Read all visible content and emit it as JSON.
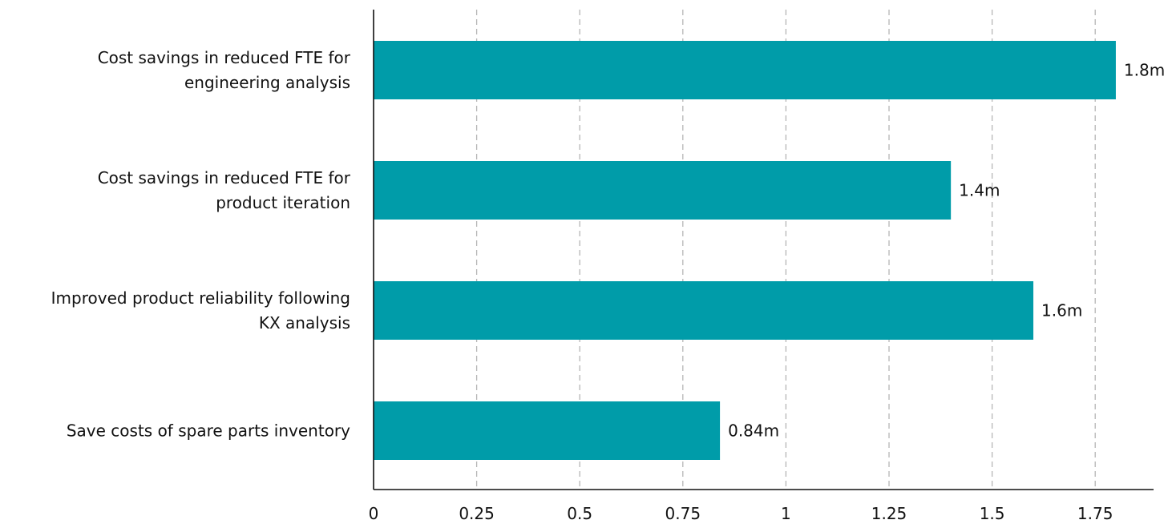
{
  "chart_data": {
    "type": "bar",
    "orientation": "horizontal",
    "categories": [
      [
        "Cost savings in reduced FTE for",
        "engineering analysis"
      ],
      [
        "Cost savings in reduced FTE for",
        "product iteration"
      ],
      [
        "Improved product reliability following",
        "KX analysis"
      ],
      [
        "Save costs of spare parts inventory"
      ]
    ],
    "values": [
      1.8,
      1.4,
      1.6,
      0.84
    ],
    "value_labels": [
      "1.8m",
      "1.4m",
      "1.6m",
      "0.84m"
    ],
    "xlim": [
      0,
      1.75
    ],
    "x_ticks": [
      0,
      0.25,
      0.5,
      0.75,
      1,
      1.25,
      1.5,
      1.75
    ],
    "x_tick_labels": [
      "0",
      "0.25",
      "0.5",
      "0.75",
      "1",
      "1.25",
      "1.5",
      "1.75"
    ],
    "grid": "vertical dashed",
    "bar_color": "#009CA9",
    "grid_color": "#B5B5B5",
    "axis_color": "#111111",
    "text_color": "#111111"
  }
}
